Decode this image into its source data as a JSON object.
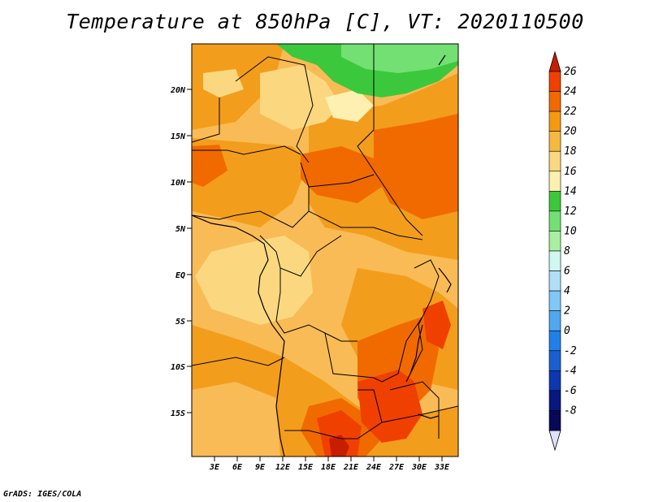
{
  "title": "Temperature at 850hPa [C], VT: 2020110500",
  "credit": "GrADS: IGES/COLA",
  "map": {
    "lon_range": [
      0,
      35
    ],
    "lat_range": [
      -20,
      24
    ],
    "lon_ticks": [
      "3E",
      "6E",
      "9E",
      "12E",
      "15E",
      "18E",
      "21E",
      "24E",
      "27E",
      "30E",
      "33E"
    ],
    "lat_ticks": [
      "20N",
      "15N",
      "10N",
      "5N",
      "EQ",
      "5S",
      "10S",
      "15S"
    ]
  },
  "colorbar": {
    "labels": [
      "26",
      "24",
      "22",
      "20",
      "18",
      "16",
      "14",
      "12",
      "10",
      "8",
      "6",
      "4",
      "2",
      "0",
      "-2",
      "-4",
      "-6",
      "-8"
    ],
    "colors": [
      "#c81e00",
      "#f04000",
      "#f06a00",
      "#f59a10",
      "#f6b940",
      "#fbd880",
      "#fdf0b0",
      "#3cc83c",
      "#72e072",
      "#a8f0a0",
      "#d0f8f0",
      "#b0e0f8",
      "#80c8f8",
      "#50a8f0",
      "#2080e8",
      "#1860d0",
      "#0c38b0",
      "#081880",
      "#080858"
    ]
  },
  "colors": {
    "land_base": "#f9bb55",
    "warm_band": "#f39d1c",
    "hot": "#f06a00",
    "very_hot": "#f04000",
    "extreme": "#c81e00",
    "cool_land": "#fbd880",
    "green": "#3cc83c",
    "light_green": "#72e072"
  }
}
